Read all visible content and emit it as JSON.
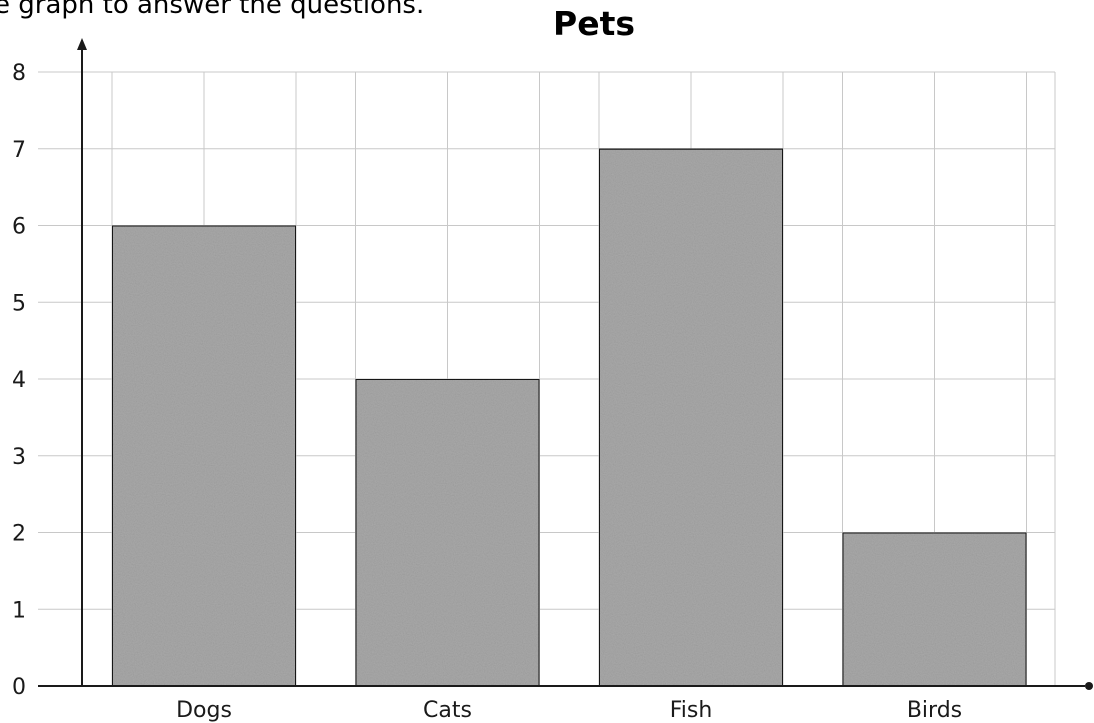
{
  "instruction": "e graph to answer the questions.",
  "chart_data": {
    "type": "bar",
    "title": "Pets",
    "xlabel": "",
    "ylabel": "",
    "categories": [
      "Dogs",
      "Cats",
      "Fish",
      "Birds"
    ],
    "values": [
      6,
      4,
      7,
      2
    ],
    "ylim": [
      0,
      8
    ],
    "yticks": [
      "0",
      "1",
      "2",
      "3",
      "4",
      "5",
      "6",
      "7",
      "8"
    ],
    "grid": true,
    "legend": "none",
    "bar_color": "#a9a9a9",
    "grid_color": "#c8c8c8",
    "axis_color": "#1a1a1a"
  }
}
